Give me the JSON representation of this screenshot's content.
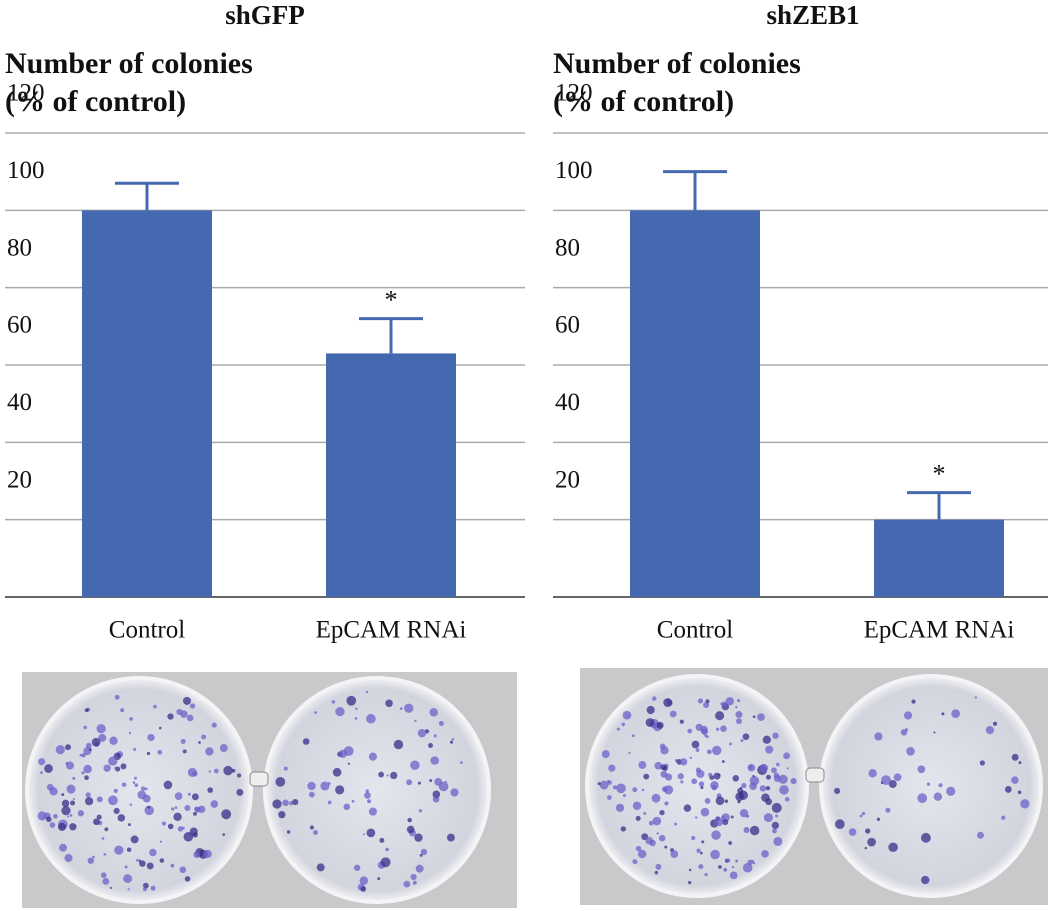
{
  "chart_data": [
    {
      "type": "bar",
      "title": "shGFP",
      "ylabel": [
        "Number of colonies",
        "(% of control)"
      ],
      "categories": [
        "Control",
        "EpCAM RNAi"
      ],
      "values": [
        100,
        63
      ],
      "errors": [
        7,
        9
      ],
      "markers": [
        null,
        "*"
      ],
      "color": "#4569b0",
      "ylim": [
        0,
        120
      ],
      "yticks": [
        20,
        40,
        60,
        80,
        100,
        120
      ],
      "grid": true
    },
    {
      "type": "bar",
      "title": "shZEB1",
      "ylabel": [
        "Number of colonies",
        "(% of control)"
      ],
      "categories": [
        "Control",
        "EpCAM RNAi"
      ],
      "values": [
        100,
        20
      ],
      "errors": [
        10,
        7
      ],
      "markers": [
        null,
        "*"
      ],
      "color": "#4569b0",
      "ylim": [
        0,
        120
      ],
      "yticks": [
        20,
        40,
        60,
        80,
        100,
        120
      ],
      "grid": true
    }
  ]
}
